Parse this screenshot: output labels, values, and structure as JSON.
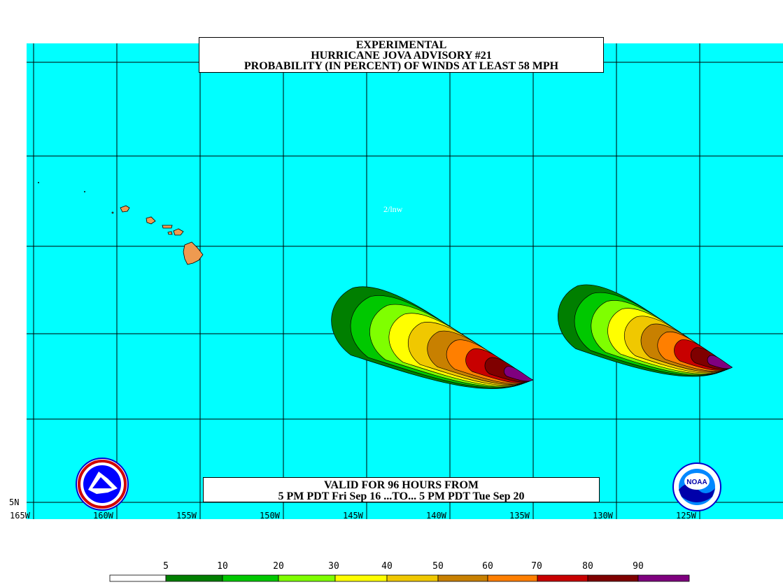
{
  "title": {
    "line1": "EXPERIMENTAL",
    "line2": "HURRICANE JOVA ADVISORY #21",
    "line3": "PROBABILITY (IN PERCENT) OF WINDS AT LEAST 58 MPH"
  },
  "valid": {
    "line1": "VALID FOR 96 HOURS FROM",
    "line2": "5 PM PDT Fri Sep 16 ...TO... 5 PM PDT Tue Sep 20"
  },
  "stamp": "2/lnw",
  "lat_label": "5N",
  "lon_labels": [
    "165W",
    "160W",
    "155W",
    "150W",
    "145W",
    "140W",
    "135W",
    "130W",
    "125W"
  ],
  "legend": {
    "labels": [
      "5",
      "10",
      "20",
      "30",
      "40",
      "50",
      "60",
      "70",
      "80",
      "90"
    ],
    "colors": [
      "#ffffff",
      "#007f00",
      "#00c800",
      "#7fff00",
      "#ffff00",
      "#f0c800",
      "#c88000",
      "#ff7f00",
      "#c80000",
      "#7f0000",
      "#7f007f"
    ]
  },
  "colors": {
    "ocean": "#00ffff",
    "land": "#ee9a50",
    "grid": "#000000"
  },
  "icons": [
    "nws-logo-icon",
    "noaa-logo-icon"
  ]
}
